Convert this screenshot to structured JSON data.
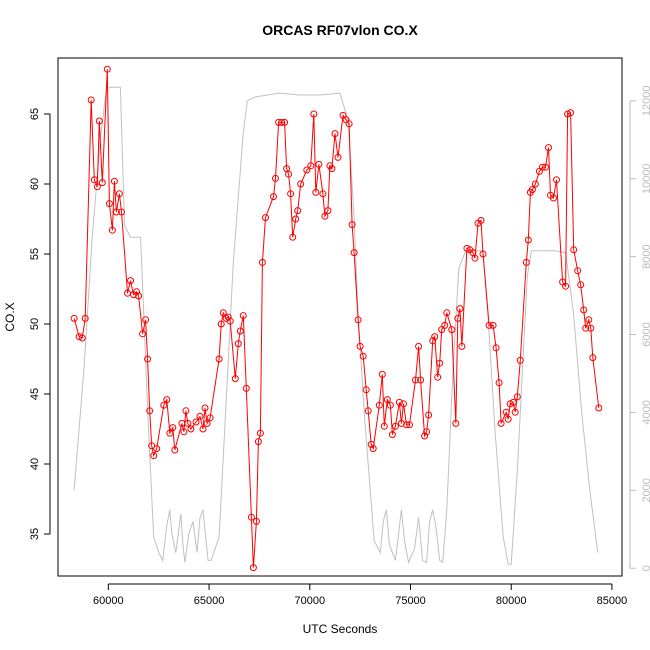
{
  "chart_data": {
    "type": "line",
    "title": "ORCAS RF07vlon CO.X",
    "xlabel": "UTC Seconds",
    "ylabel": "CO.X",
    "xlim": [
      57500,
      85500
    ],
    "ylim": [
      32,
      69
    ],
    "y2lim": [
      -200,
      13100
    ],
    "x_ticks": [
      60000,
      65000,
      70000,
      75000,
      80000,
      85000
    ],
    "y_ticks": [
      35,
      40,
      45,
      50,
      55,
      60,
      65
    ],
    "y2_ticks": [
      0,
      2000,
      4000,
      6000,
      8000,
      10000,
      12000
    ],
    "colors": {
      "co": "#ff0000",
      "altitude": "#c0c0c0"
    },
    "grid": false,
    "series": [
      {
        "type": "line+points",
        "color": "#ff0000",
        "axis": "left",
        "points": [
          [
            58300,
            50.4
          ],
          [
            58550,
            49.1
          ],
          [
            58700,
            49.0
          ],
          [
            58850,
            50.4
          ],
          [
            59150,
            66.0
          ],
          [
            59300,
            60.3
          ],
          [
            59450,
            59.8
          ],
          [
            59550,
            64.5
          ],
          [
            59700,
            60.1
          ],
          [
            59950,
            68.2
          ],
          [
            60050,
            58.6
          ],
          [
            60200,
            56.7
          ],
          [
            60300,
            60.2
          ],
          [
            60400,
            58.0
          ],
          [
            60550,
            59.3
          ],
          [
            60650,
            58.0
          ],
          [
            60950,
            52.2
          ],
          [
            61100,
            53.1
          ],
          [
            61250,
            52.1
          ],
          [
            61400,
            52.3
          ],
          [
            61500,
            52.0
          ],
          [
            61700,
            49.3
          ],
          [
            61850,
            50.3
          ],
          [
            61950,
            47.5
          ],
          [
            62050,
            43.8
          ],
          [
            62150,
            41.3
          ],
          [
            62250,
            40.6
          ],
          [
            62400,
            41.1
          ],
          [
            62750,
            44.2
          ],
          [
            62900,
            44.6
          ],
          [
            63050,
            42.2
          ],
          [
            63200,
            42.6
          ],
          [
            63300,
            41.0
          ],
          [
            63650,
            42.9
          ],
          [
            63750,
            42.3
          ],
          [
            63850,
            43.8
          ],
          [
            63950,
            42.9
          ],
          [
            64100,
            42.5
          ],
          [
            64350,
            43.0
          ],
          [
            64550,
            43.4
          ],
          [
            64700,
            42.5
          ],
          [
            64800,
            44.0
          ],
          [
            64900,
            42.9
          ],
          [
            65050,
            43.3
          ],
          [
            65500,
            47.5
          ],
          [
            65600,
            50.0
          ],
          [
            65700,
            50.8
          ],
          [
            65850,
            50.4
          ],
          [
            65950,
            50.5
          ],
          [
            66050,
            50.2
          ],
          [
            66300,
            46.1
          ],
          [
            66450,
            48.6
          ],
          [
            66550,
            49.5
          ],
          [
            66700,
            50.6
          ],
          [
            66850,
            45.4
          ],
          [
            67100,
            36.2
          ],
          [
            67200,
            32.6
          ],
          [
            67350,
            35.9
          ],
          [
            67450,
            41.6
          ],
          [
            67550,
            42.2
          ],
          [
            67650,
            54.4
          ],
          [
            67800,
            57.6
          ],
          [
            68200,
            59.1
          ],
          [
            68300,
            60.4
          ],
          [
            68450,
            64.4
          ],
          [
            68600,
            64.4
          ],
          [
            68750,
            64.4
          ],
          [
            68850,
            61.1
          ],
          [
            68950,
            60.7
          ],
          [
            69050,
            59.3
          ],
          [
            69150,
            56.2
          ],
          [
            69300,
            57.5
          ],
          [
            69400,
            58.1
          ],
          [
            69550,
            60.0
          ],
          [
            69850,
            61.0
          ],
          [
            70050,
            61.3
          ],
          [
            70200,
            65.0
          ],
          [
            70300,
            59.4
          ],
          [
            70450,
            61.4
          ],
          [
            70650,
            59.3
          ],
          [
            70750,
            57.7
          ],
          [
            70900,
            58.1
          ],
          [
            71000,
            61.3
          ],
          [
            71100,
            61.1
          ],
          [
            71250,
            63.6
          ],
          [
            71400,
            61.9
          ],
          [
            71650,
            64.9
          ],
          [
            71800,
            64.6
          ],
          [
            71950,
            64.3
          ],
          [
            72100,
            57.1
          ],
          [
            72200,
            55.1
          ],
          [
            72400,
            50.3
          ],
          [
            72500,
            48.4
          ],
          [
            72650,
            47.7
          ],
          [
            72800,
            45.3
          ],
          [
            72900,
            43.8
          ],
          [
            73050,
            41.4
          ],
          [
            73150,
            41.1
          ],
          [
            73450,
            44.2
          ],
          [
            73600,
            46.4
          ],
          [
            73700,
            42.7
          ],
          [
            73850,
            44.6
          ],
          [
            74000,
            44.2
          ],
          [
            74100,
            42.1
          ],
          [
            74250,
            42.7
          ],
          [
            74450,
            44.4
          ],
          [
            74550,
            42.9
          ],
          [
            74650,
            44.3
          ],
          [
            74800,
            42.8
          ],
          [
            74950,
            42.8
          ],
          [
            75250,
            46.0
          ],
          [
            75400,
            48.4
          ],
          [
            75500,
            46.0
          ],
          [
            75700,
            42.0
          ],
          [
            75800,
            42.3
          ],
          [
            75900,
            43.5
          ],
          [
            76100,
            48.8
          ],
          [
            76200,
            49.1
          ],
          [
            76350,
            46.2
          ],
          [
            76450,
            47.2
          ],
          [
            76550,
            49.6
          ],
          [
            76700,
            49.9
          ],
          [
            76800,
            50.8
          ],
          [
            77050,
            49.6
          ],
          [
            77250,
            42.9
          ],
          [
            77350,
            50.4
          ],
          [
            77450,
            51.1
          ],
          [
            77550,
            48.4
          ],
          [
            77800,
            55.4
          ],
          [
            77950,
            55.3
          ],
          [
            78100,
            55.1
          ],
          [
            78200,
            54.7
          ],
          [
            78350,
            57.2
          ],
          [
            78500,
            57.4
          ],
          [
            78600,
            55.0
          ],
          [
            78900,
            49.9
          ],
          [
            79100,
            49.9
          ],
          [
            79250,
            48.3
          ],
          [
            79400,
            45.8
          ],
          [
            79500,
            42.9
          ],
          [
            79750,
            43.7
          ],
          [
            79850,
            43.2
          ],
          [
            79950,
            44.3
          ],
          [
            80100,
            44.4
          ],
          [
            80200,
            43.7
          ],
          [
            80300,
            44.8
          ],
          [
            80450,
            47.4
          ],
          [
            80750,
            54.4
          ],
          [
            80850,
            56.0
          ],
          [
            80950,
            59.4
          ],
          [
            81050,
            59.6
          ],
          [
            81200,
            60.0
          ],
          [
            81400,
            60.9
          ],
          [
            81550,
            61.2
          ],
          [
            81700,
            61.2
          ],
          [
            81850,
            62.6
          ],
          [
            81950,
            59.2
          ],
          [
            82100,
            59.0
          ],
          [
            82250,
            60.3
          ],
          [
            82550,
            53.0
          ],
          [
            82700,
            52.7
          ],
          [
            82800,
            65.0
          ],
          [
            82950,
            65.1
          ],
          [
            83100,
            55.3
          ],
          [
            83300,
            53.8
          ],
          [
            83450,
            52.8
          ],
          [
            83600,
            51.0
          ],
          [
            83700,
            49.7
          ],
          [
            83850,
            50.3
          ],
          [
            83950,
            49.7
          ],
          [
            84050,
            47.6
          ],
          [
            84350,
            44.0
          ]
        ]
      },
      {
        "type": "line",
        "color": "#c0c0c0",
        "axis": "right",
        "points": [
          [
            58300,
            2000
          ],
          [
            58800,
            5200
          ],
          [
            59200,
            8500
          ],
          [
            59600,
            11000
          ],
          [
            59900,
            12300
          ],
          [
            60100,
            12350
          ],
          [
            60600,
            12350
          ],
          [
            60800,
            8800
          ],
          [
            61100,
            8500
          ],
          [
            61600,
            8500
          ],
          [
            61800,
            6000
          ],
          [
            62000,
            3500
          ],
          [
            62250,
            800
          ],
          [
            62500,
            400
          ],
          [
            62700,
            200
          ],
          [
            62900,
            1100
          ],
          [
            63050,
            1500
          ],
          [
            63150,
            900
          ],
          [
            63350,
            400
          ],
          [
            63600,
            1400
          ],
          [
            63700,
            600
          ],
          [
            63800,
            150
          ],
          [
            64000,
            900
          ],
          [
            64200,
            1200
          ],
          [
            64400,
            400
          ],
          [
            64550,
            1300
          ],
          [
            64700,
            1500
          ],
          [
            64850,
            700
          ],
          [
            64950,
            200
          ],
          [
            65100,
            200
          ],
          [
            65500,
            800
          ],
          [
            65800,
            3800
          ],
          [
            66200,
            7800
          ],
          [
            66700,
            11200
          ],
          [
            66900,
            12000
          ],
          [
            67300,
            12100
          ],
          [
            68500,
            12200
          ],
          [
            69500,
            12150
          ],
          [
            70500,
            12150
          ],
          [
            71500,
            12200
          ],
          [
            71900,
            11500
          ],
          [
            72200,
            9000
          ],
          [
            72400,
            6500
          ],
          [
            72700,
            4000
          ],
          [
            73000,
            2000
          ],
          [
            73200,
            700
          ],
          [
            73500,
            400
          ],
          [
            73650,
            1200
          ],
          [
            73800,
            1500
          ],
          [
            73950,
            600
          ],
          [
            74250,
            200
          ],
          [
            74550,
            1500
          ],
          [
            74700,
            700
          ],
          [
            74900,
            150
          ],
          [
            75200,
            500
          ],
          [
            75400,
            1300
          ],
          [
            75600,
            200
          ],
          [
            75800,
            150
          ],
          [
            75950,
            1200
          ],
          [
            76100,
            1500
          ],
          [
            76250,
            1100
          ],
          [
            76450,
            200
          ],
          [
            76600,
            150
          ],
          [
            76800,
            1500
          ],
          [
            77100,
            5000
          ],
          [
            77400,
            7700
          ],
          [
            77700,
            8100
          ],
          [
            78000,
            8150
          ],
          [
            78600,
            8150
          ],
          [
            78850,
            6500
          ],
          [
            79200,
            3500
          ],
          [
            79600,
            800
          ],
          [
            79850,
            100
          ],
          [
            80000,
            100
          ],
          [
            80300,
            2500
          ],
          [
            80800,
            7500
          ],
          [
            81000,
            8150
          ],
          [
            81600,
            8150
          ],
          [
            82200,
            8150
          ],
          [
            82700,
            8100
          ],
          [
            83100,
            6500
          ],
          [
            83500,
            4000
          ],
          [
            83900,
            2000
          ],
          [
            84300,
            400
          ]
        ]
      }
    ]
  }
}
